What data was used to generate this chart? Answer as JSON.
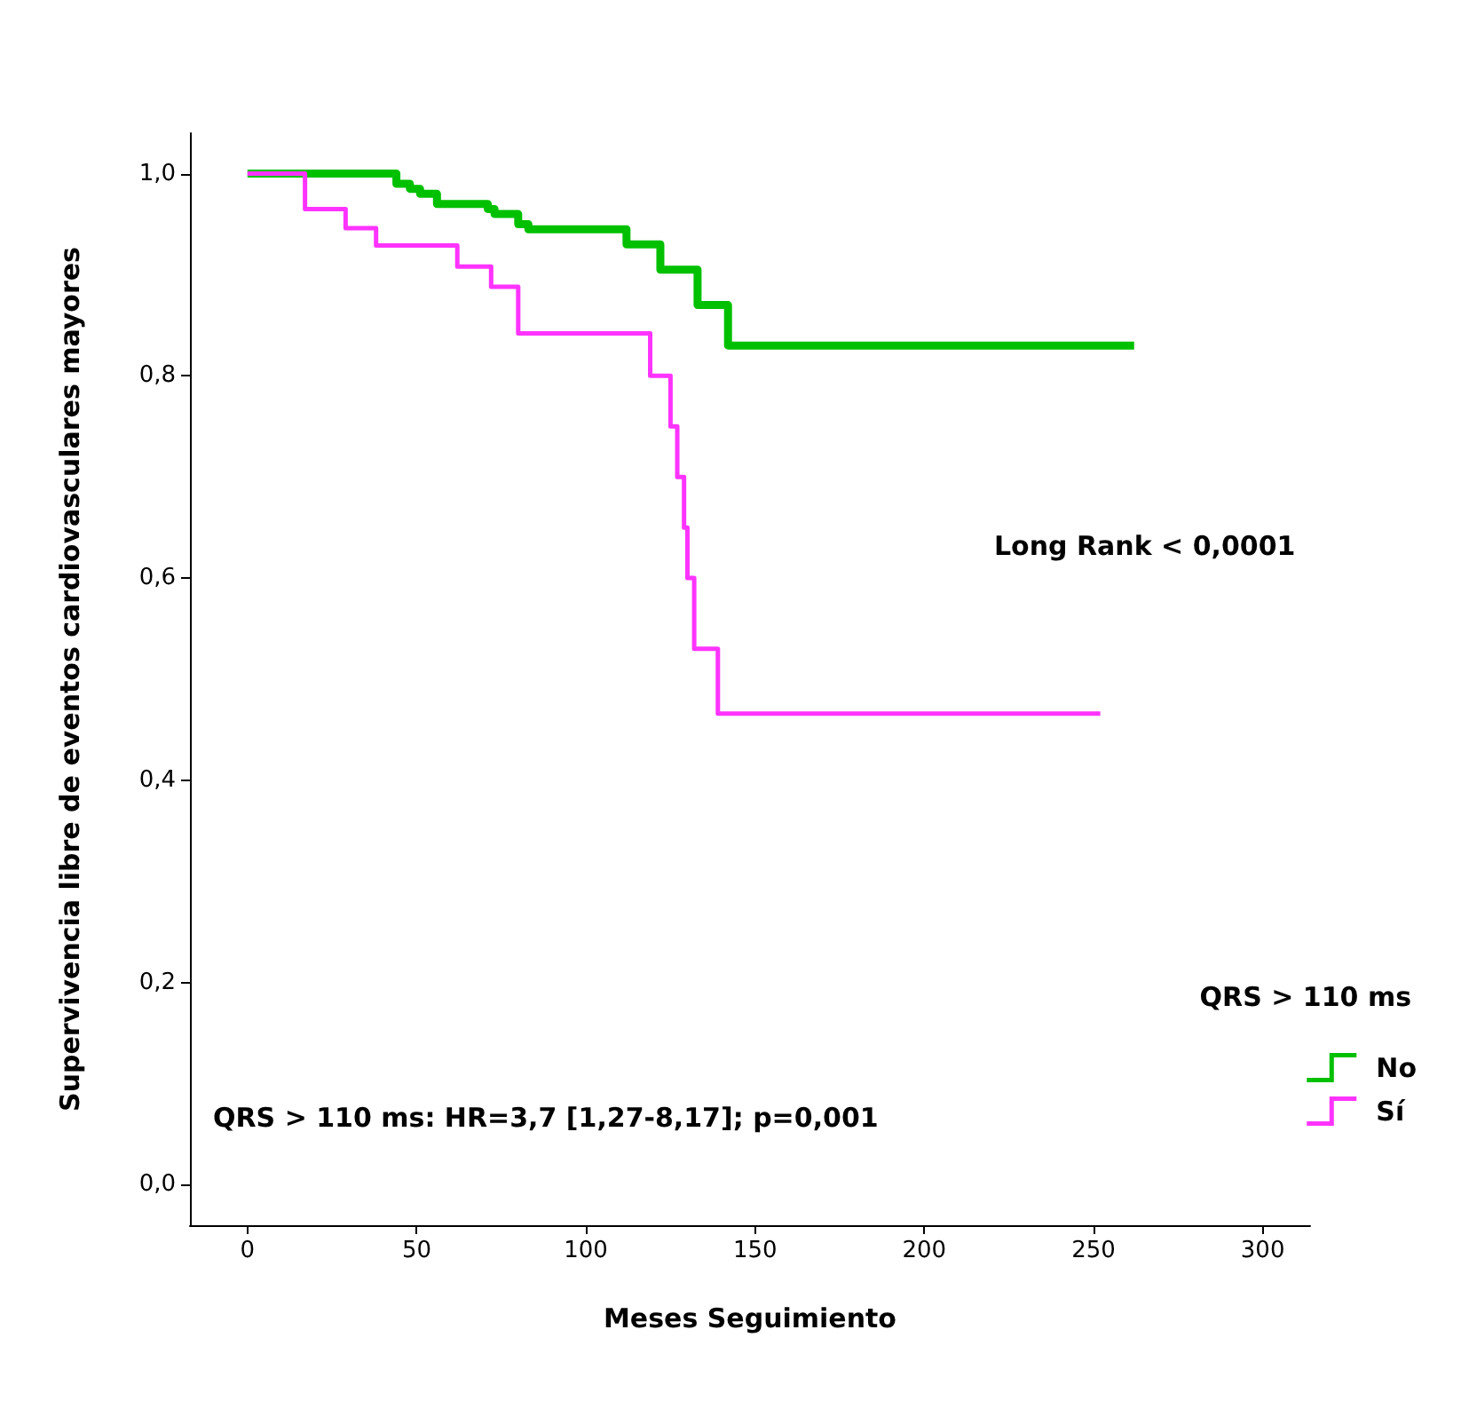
{
  "chart_data": {
    "type": "step",
    "xlabel": "Meses Seguimiento",
    "ylabel": "Supervivencia libre de eventos cardiovasculares mayores",
    "legend_title": "QRS > 110 ms",
    "legend": "bottom right",
    "grid": false,
    "marker": "none",
    "line_style": "solid",
    "xlim": [
      -17,
      314
    ],
    "xticks": [
      0,
      50,
      100,
      150,
      200,
      250,
      300
    ],
    "ylim": [
      -0.04,
      1.04
    ],
    "yticks": [
      {
        "value": 0,
        "label": "0,0"
      },
      {
        "value": 0.2,
        "label": "0,2"
      },
      {
        "value": 0.4,
        "label": "0,4"
      },
      {
        "value": 0.6,
        "label": "0,6"
      },
      {
        "value": 0.8,
        "label": "0,8"
      },
      {
        "value": 1,
        "label": "1,0"
      }
    ],
    "annotations": [
      "Long Rank < 0,0001",
      "QRS > 110 ms: HR=3,7 [1,27-8,17]; p=0,001"
    ],
    "series": [
      {
        "name": "No",
        "color": "#00c000",
        "x": [
          0,
          44,
          48,
          51,
          56,
          71,
          73,
          80,
          83,
          112,
          122,
          133,
          142,
          262
        ],
        "values": [
          1.0,
          0.99,
          0.985,
          0.98,
          0.97,
          0.965,
          0.96,
          0.95,
          0.945,
          0.93,
          0.905,
          0.87,
          0.83,
          0.83
        ]
      },
      {
        "name": "Sí",
        "color": "#ff33ff",
        "x": [
          0,
          17,
          29,
          38,
          62,
          72,
          80,
          119,
          125,
          127,
          129,
          130,
          132,
          139,
          252
        ],
        "values": [
          1.0,
          0.965,
          0.946,
          0.929,
          0.908,
          0.888,
          0.842,
          0.8,
          0.75,
          0.7,
          0.65,
          0.6,
          0.53,
          0.466,
          0.466
        ]
      }
    ]
  }
}
